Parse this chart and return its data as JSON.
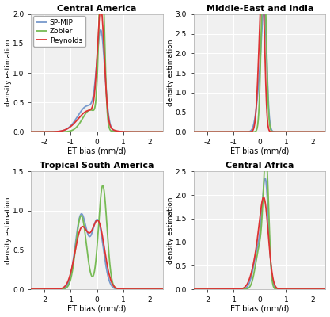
{
  "titles": [
    "Central America",
    "Middle-East and India",
    "Tropical South America",
    "Central Africa"
  ],
  "xlabel": "ET bias (mm/d)",
  "ylabel": "density estimation",
  "xlim": [
    -2.5,
    2.5
  ],
  "colors": {
    "blue": "#7799CC",
    "green": "#77BB55",
    "red": "#DD3333"
  },
  "legend_labels": [
    "SP-MIP",
    "Zobler",
    "Reynolds"
  ],
  "background": "#f0f0f0",
  "grid_color": "#ffffff",
  "CA": {
    "blue": {
      "means": [
        -0.35,
        0.15
      ],
      "stds": [
        0.38,
        0.15
      ],
      "weights": [
        0.42,
        0.58
      ]
    },
    "green": {
      "means": [
        -0.25,
        0.18
      ],
      "stds": [
        0.3,
        0.1
      ],
      "weights": [
        0.28,
        0.72
      ]
    },
    "red": {
      "means": [
        -0.3,
        0.15
      ],
      "stds": [
        0.42,
        0.13
      ],
      "weights": [
        0.38,
        0.62
      ]
    }
  },
  "MEI": {
    "blue": {
      "means": [
        0.05,
        0.18
      ],
      "stds": [
        0.14,
        0.09
      ],
      "weights": [
        0.5,
        0.5
      ]
    },
    "green": {
      "means": [
        0.15
      ],
      "stds": [
        0.09
      ],
      "weights": [
        1.0
      ]
    },
    "red": {
      "means": [
        0.02,
        0.12
      ],
      "stds": [
        0.1,
        0.08
      ],
      "weights": [
        0.5,
        0.5
      ]
    }
  },
  "TSA": {
    "blue": {
      "means": [
        -0.6,
        0.02
      ],
      "stds": [
        0.22,
        0.22
      ],
      "weights": [
        0.52,
        0.48
      ]
    },
    "green": {
      "means": [
        -0.6,
        0.22
      ],
      "stds": [
        0.2,
        0.16
      ],
      "weights": [
        0.47,
        0.53
      ]
    },
    "red": {
      "means": [
        -0.58,
        0.05
      ],
      "stds": [
        0.26,
        0.24
      ],
      "weights": [
        0.5,
        0.5
      ]
    }
  },
  "CAF": {
    "blue": {
      "means": [
        -0.05,
        0.22
      ],
      "stds": [
        0.18,
        0.12
      ],
      "weights": [
        0.38,
        0.62
      ]
    },
    "green": {
      "means": [
        0.0,
        0.24
      ],
      "stds": [
        0.16,
        0.1
      ],
      "weights": [
        0.35,
        0.65
      ]
    },
    "red": {
      "means": [
        -0.05,
        0.18
      ],
      "stds": [
        0.22,
        0.16
      ],
      "weights": [
        0.4,
        0.6
      ]
    }
  },
  "ylims": [
    2.0,
    3.0,
    1.5,
    2.5
  ],
  "yticks": [
    [
      0.0,
      0.5,
      1.0,
      1.5,
      2.0
    ],
    [
      0.0,
      0.5,
      1.0,
      1.5,
      2.0,
      2.5,
      3.0
    ],
    [
      0.0,
      0.5,
      1.0,
      1.5
    ],
    [
      0.0,
      0.5,
      1.0,
      1.5,
      2.0,
      2.5
    ]
  ]
}
